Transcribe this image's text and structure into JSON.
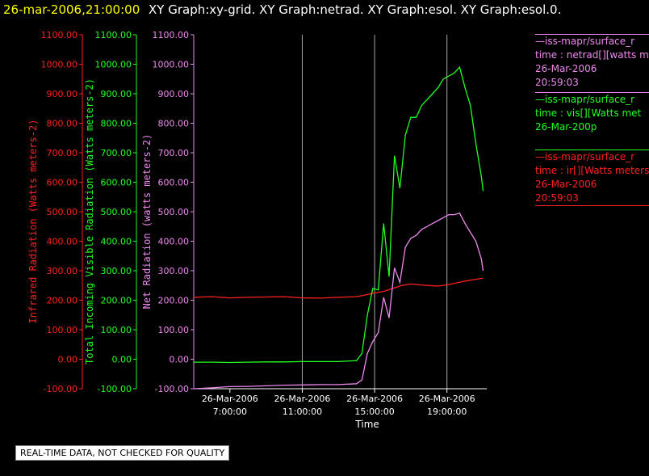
{
  "header": {
    "date_time": "26-mar-2006,21:00:00",
    "graphs": "XY Graph:xy-grid.  XY Graph:netrad.  XY Graph:esol.  XY Graph:esol.0."
  },
  "colors": {
    "ir": "#ff2020",
    "vis": "#22ff22",
    "net": "#ee88ee",
    "grid": "#aaaaaa",
    "header_date": "#ffff00",
    "text": "#ffffff"
  },
  "legend": [
    {
      "line1": "—iss-mapr/surface_r",
      "line2": "time : netrad[][watts m",
      "line3": "26-Mar-2006",
      "line4": "20:59:03",
      "color": "#ee88ee"
    },
    {
      "line1": "—iss-mapr/surface_r",
      "line2": "time : vis[][Watts met",
      "line3": "26-Mar-200p",
      "line4": "",
      "color": "#22ff22"
    },
    {
      "line1": "—iss-mapr/surface_r",
      "line2": "time : ir[][Watts meters",
      "line3": "26-Mar-2006",
      "line4": "20:59:03",
      "color": "#ff2020"
    }
  ],
  "note": "REAL-TIME DATA, NOT CHECKED FOR QUALITY",
  "chart_data": {
    "type": "line",
    "xlabel": "Time",
    "x_ticks": [
      {
        "date": "26-Mar-2006",
        "time": "7:00:00",
        "hour": 7
      },
      {
        "date": "26-Mar-2006",
        "time": "11:00:00",
        "hour": 11
      },
      {
        "date": "26-Mar-2006",
        "time": "15:00:00",
        "hour": 15
      },
      {
        "date": "26-Mar-2006",
        "time": "19:00:00",
        "hour": 19
      }
    ],
    "xlim": [
      5,
      21.2
    ],
    "vertical_gridlines_at_hours": [
      11,
      15,
      19
    ],
    "ylim": [
      -100,
      1100
    ],
    "y_ticks": [
      "-100.00",
      "0.00",
      "100.00",
      "200.00",
      "300.00",
      "400.00",
      "500.00",
      "600.00",
      "700.00",
      "800.00",
      "900.00",
      "1000.00",
      "1100.00"
    ],
    "y_ticks_values": [
      -100,
      0,
      100,
      200,
      300,
      400,
      500,
      600,
      700,
      800,
      900,
      1000,
      1100
    ],
    "axes": [
      {
        "key": "ir",
        "label": "Infrared Radiation (Watts meters-2)"
      },
      {
        "key": "vis",
        "label": "Total Incoming Visible Radiation (Watts meters-2)"
      },
      {
        "key": "net",
        "label": "Net Radiation (watts meters-2)"
      }
    ],
    "series": [
      {
        "key": "ir",
        "x": [
          5,
          6,
          7,
          8,
          9,
          10,
          11,
          12,
          13,
          14,
          14.5,
          15,
          15.5,
          16,
          16.5,
          17,
          17.5,
          18,
          18.5,
          19,
          19.5,
          20,
          20.5,
          21
        ],
        "y": [
          210,
          212,
          208,
          210,
          211,
          212,
          208,
          207,
          210,
          212,
          218,
          225,
          230,
          240,
          250,
          255,
          252,
          250,
          248,
          252,
          258,
          265,
          270,
          275
        ]
      },
      {
        "key": "vis",
        "x": [
          5,
          6,
          7,
          8,
          9,
          10,
          11,
          12,
          13,
          14,
          14.3,
          14.6,
          14.9,
          15.2,
          15.5,
          15.8,
          16.1,
          16.4,
          16.7,
          17,
          17.3,
          17.6,
          17.9,
          18.2,
          18.5,
          18.8,
          19.1,
          19.4,
          19.7,
          20,
          20.3,
          20.6,
          20.9,
          21
        ],
        "y": [
          -10,
          -10,
          -11,
          -10,
          -9,
          -9,
          -8,
          -8,
          -8,
          -5,
          20,
          150,
          240,
          235,
          460,
          280,
          690,
          580,
          760,
          820,
          820,
          860,
          880,
          900,
          920,
          950,
          960,
          970,
          990,
          920,
          860,
          730,
          620,
          570
        ]
      },
      {
        "key": "net",
        "x": [
          5,
          6,
          7,
          8,
          9,
          10,
          11,
          12,
          13,
          14,
          14.3,
          14.6,
          14.9,
          15.2,
          15.5,
          15.8,
          16.1,
          16.4,
          16.7,
          17,
          17.3,
          17.6,
          17.9,
          18.2,
          18.5,
          18.8,
          19.1,
          19.4,
          19.7,
          20,
          20.3,
          20.6,
          20.9,
          21
        ],
        "y": [
          -100,
          -97,
          -93,
          -92,
          -90,
          -88,
          -87,
          -86,
          -86,
          -83,
          -70,
          20,
          60,
          90,
          210,
          140,
          310,
          260,
          380,
          410,
          420,
          440,
          450,
          460,
          470,
          480,
          490,
          490,
          495,
          460,
          430,
          400,
          340,
          300
        ]
      }
    ]
  }
}
